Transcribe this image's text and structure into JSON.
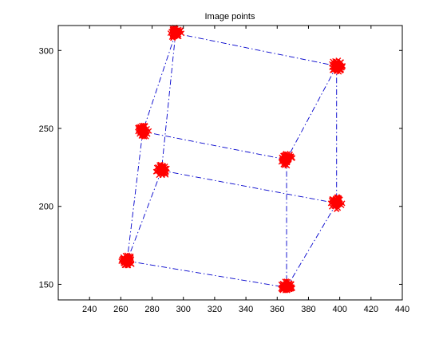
{
  "chart_data": {
    "type": "scatter",
    "title": "Image points",
    "xlabel": "",
    "ylabel": "",
    "xlim": [
      220,
      440
    ],
    "ylim": [
      140,
      316
    ],
    "xticks": [
      240,
      260,
      280,
      300,
      320,
      340,
      360,
      380,
      400,
      420,
      440
    ],
    "yticks": [
      150,
      200,
      250,
      300
    ],
    "grid": false,
    "legend": "none",
    "point_color": "#ff0000",
    "line_color": "#0000cc",
    "line_style": "dash-dot",
    "points": [
      {
        "id": "p1",
        "x": 295,
        "y": 311
      },
      {
        "id": "p2",
        "x": 398,
        "y": 290
      },
      {
        "id": "p3",
        "x": 274,
        "y": 248
      },
      {
        "id": "p4",
        "x": 366,
        "y": 230
      },
      {
        "id": "p5",
        "x": 286,
        "y": 223
      },
      {
        "id": "p6",
        "x": 398,
        "y": 202
      },
      {
        "id": "p7",
        "x": 264,
        "y": 165
      },
      {
        "id": "p8",
        "x": 366,
        "y": 148
      }
    ],
    "edges": [
      [
        "p1",
        "p2"
      ],
      [
        "p1",
        "p3"
      ],
      [
        "p1",
        "p5"
      ],
      [
        "p2",
        "p4"
      ],
      [
        "p2",
        "p6"
      ],
      [
        "p3",
        "p4"
      ],
      [
        "p3",
        "p7"
      ],
      [
        "p4",
        "p8"
      ],
      [
        "p5",
        "p6"
      ],
      [
        "p5",
        "p7"
      ],
      [
        "p6",
        "p8"
      ],
      [
        "p7",
        "p8"
      ]
    ]
  }
}
